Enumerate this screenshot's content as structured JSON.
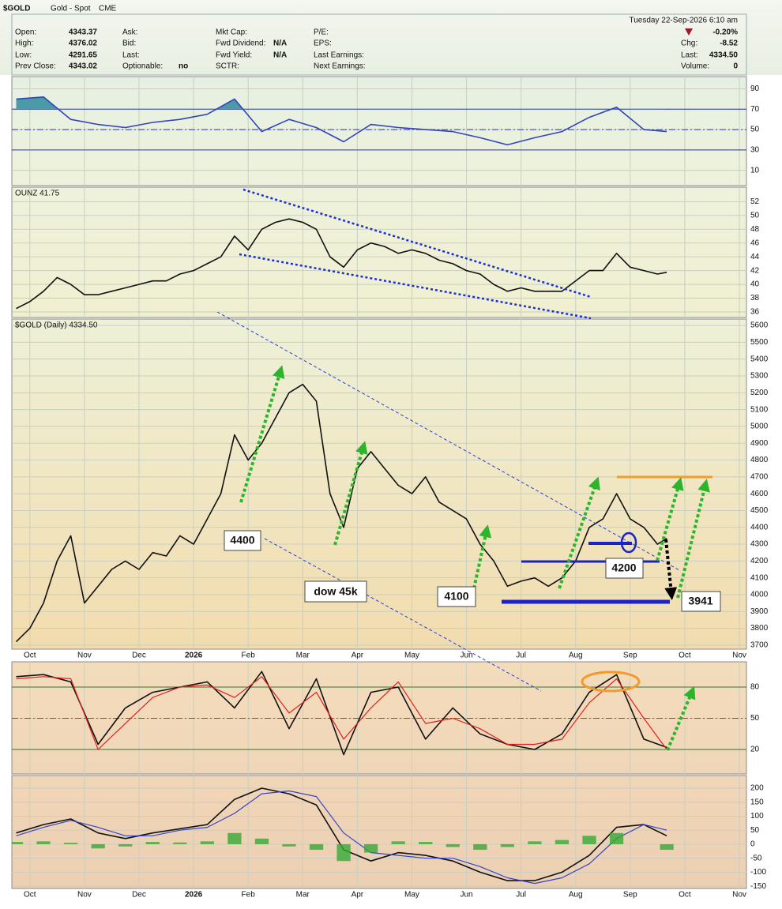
{
  "header": {
    "symbol": "$GOLD",
    "name": "Gold - Spot",
    "exchange": "CME",
    "date": "Tuesday  22-Sep-2026  6:10 am",
    "change_pct": "-0.20%",
    "columns": [
      [
        {
          "label": "Open:",
          "value": "4343.37"
        },
        {
          "label": "High:",
          "value": "4376.02"
        },
        {
          "label": "Low:",
          "value": "4291.65"
        },
        {
          "label": "Prev Close:",
          "value": "4343.02"
        }
      ],
      [
        {
          "label": "Ask:"
        },
        {
          "label": "Bid:"
        },
        {
          "label": "Last:"
        },
        {
          "label": "Optionable:",
          "value": "no"
        }
      ],
      [
        {
          "label": "Mkt Cap:"
        },
        {
          "label": "Fwd Dividend:",
          "value": "N/A"
        },
        {
          "label": "Fwd Yield:",
          "value": "N/A"
        },
        {
          "label": "SCTR:"
        }
      ],
      [
        {
          "label": "P/E:"
        },
        {
          "label": "EPS:"
        },
        {
          "label": "Last Earnings:"
        },
        {
          "label": "Next Earnings:"
        }
      ]
    ],
    "right": [
      {
        "label": "Chg:",
        "value": "-8.52"
      },
      {
        "label": "Last:",
        "value": "4334.50"
      },
      {
        "label": "Volume:",
        "value": "0"
      }
    ]
  },
  "chart_data": [
    {
      "type": "line",
      "x": [
        -0.25,
        0.25,
        0.75,
        1.25,
        1.75,
        2.25,
        2.75,
        3.25,
        3.75,
        4.25,
        4.75,
        5.25,
        5.75,
        6.25,
        6.75,
        7.25,
        7.75,
        8.25,
        8.75,
        9.25,
        9.75,
        10.25,
        10.75,
        11.25,
        11.67
      ],
      "series": [
        {
          "color": "#3344bb",
          "values": [
            80,
            82,
            60,
            55,
            52,
            57,
            60,
            65,
            80,
            48,
            60,
            52,
            38,
            55,
            52,
            50,
            48,
            42,
            35,
            42,
            48,
            62,
            72,
            50,
            48
          ]
        }
      ],
      "xlim": [
        -0.33,
        13.13
      ],
      "ylim": [
        -5,
        102
      ],
      "yticks": [
        10,
        30,
        50,
        70,
        90
      ],
      "hlines": [
        30,
        50,
        70
      ],
      "fill_color": "#4a9aa8"
    },
    {
      "type": "line",
      "title": "OUNZ 41.75",
      "x": [
        -0.25,
        0,
        0.25,
        0.5,
        0.75,
        1,
        1.25,
        1.5,
        1.75,
        2,
        2.25,
        2.5,
        2.75,
        3,
        3.25,
        3.5,
        3.75,
        4,
        4.25,
        4.5,
        4.75,
        5,
        5.25,
        5.5,
        5.75,
        6,
        6.25,
        6.5,
        6.75,
        7,
        7.25,
        7.5,
        7.75,
        8,
        8.25,
        8.5,
        8.75,
        9,
        9.25,
        9.5,
        9.75,
        10,
        10.25,
        10.5,
        10.75,
        11,
        11.25,
        11.5,
        11.67
      ],
      "series": [
        {
          "color": "#111111",
          "values": [
            36.5,
            37.5,
            39,
            41,
            40,
            38.5,
            38.5,
            39,
            39.5,
            40,
            40.5,
            40.5,
            41.5,
            42,
            43,
            44,
            47,
            45,
            48,
            49,
            49.5,
            49,
            48,
            44,
            42.5,
            45,
            46,
            45.5,
            44.5,
            45,
            44.5,
            43.5,
            43,
            42,
            41.5,
            40,
            39,
            39.5,
            39,
            39,
            39,
            40.5,
            42,
            42,
            44.5,
            42.5,
            42,
            41.5,
            41.75
          ]
        }
      ],
      "xlim": [
        -0.33,
        13.13
      ],
      "ylim": [
        35.2,
        54.1
      ],
      "yticks": [
        36,
        38,
        40,
        42,
        44,
        46,
        48,
        50,
        52
      ]
    },
    {
      "type": "line",
      "title": "$GOLD (Daily) 4334.50",
      "x": [
        -0.25,
        0,
        0.25,
        0.5,
        0.75,
        1,
        1.25,
        1.5,
        1.75,
        2,
        2.25,
        2.5,
        2.75,
        3,
        3.25,
        3.5,
        3.75,
        4,
        4.25,
        4.5,
        4.75,
        5,
        5.25,
        5.5,
        5.75,
        6,
        6.25,
        6.5,
        6.75,
        7,
        7.25,
        7.5,
        7.75,
        8,
        8.25,
        8.5,
        8.75,
        9,
        9.25,
        9.5,
        9.75,
        10,
        10.25,
        10.5,
        10.75,
        11,
        11.25,
        11.5,
        11.67
      ],
      "series": [
        {
          "color": "#111111",
          "values": [
            3720,
            3800,
            3950,
            4200,
            4350,
            3950,
            4050,
            4150,
            4200,
            4150,
            4250,
            4230,
            4350,
            4300,
            4450,
            4600,
            4950,
            4800,
            4900,
            5050,
            5200,
            5250,
            5150,
            4600,
            4400,
            4750,
            4850,
            4750,
            4650,
            4600,
            4700,
            4550,
            4500,
            4450,
            4300,
            4200,
            4050,
            4080,
            4100,
            4050,
            4100,
            4200,
            4400,
            4450,
            4600,
            4450,
            4400,
            4300,
            4334.5
          ]
        }
      ],
      "xlim": [
        -0.33,
        13.13
      ],
      "ylim": [
        3676,
        5638
      ],
      "yticks": [
        3700,
        3800,
        3900,
        4000,
        4100,
        4200,
        4300,
        4400,
        4500,
        4600,
        4700,
        4800,
        4900,
        5000,
        5100,
        5200,
        5300,
        5400,
        5500,
        5600
      ],
      "xticks": [
        {
          "value": 0,
          "label": "Oct"
        },
        {
          "value": 1,
          "label": "Nov"
        },
        {
          "value": 2,
          "label": "Dec"
        },
        {
          "value": 3,
          "label": "2026"
        },
        {
          "value": 4,
          "label": "Feb"
        },
        {
          "value": 5,
          "label": "Mar"
        },
        {
          "value": 6,
          "label": "Apr"
        },
        {
          "value": 7,
          "label": "May"
        },
        {
          "value": 8,
          "label": "Jun"
        },
        {
          "value": 9,
          "label": "Jul"
        },
        {
          "value": 10,
          "label": "Aug"
        },
        {
          "value": 11,
          "label": "Sep"
        },
        {
          "value": 12,
          "label": "Oct"
        },
        {
          "value": 13,
          "label": "Nov"
        }
      ],
      "annotations": [
        "4400",
        "dow 45k",
        "4100",
        "4200",
        "3941"
      ]
    },
    {
      "type": "line",
      "x": [
        -0.25,
        0.25,
        0.75,
        1.25,
        1.75,
        2.25,
        2.75,
        3.25,
        3.75,
        4.25,
        4.75,
        5.25,
        5.75,
        6.25,
        6.75,
        7.25,
        7.75,
        8.25,
        8.75,
        9.25,
        9.75,
        10.25,
        10.75,
        11.25,
        11.67
      ],
      "series": [
        {
          "color": "#111111",
          "values": [
            90,
            92,
            85,
            25,
            60,
            75,
            80,
            85,
            60,
            95,
            40,
            88,
            15,
            75,
            80,
            30,
            60,
            35,
            25,
            20,
            35,
            75,
            92,
            30,
            22
          ]
        },
        {
          "color": "#e02020",
          "values": [
            88,
            90,
            88,
            20,
            45,
            70,
            80,
            82,
            70,
            90,
            55,
            75,
            30,
            60,
            85,
            45,
            50,
            40,
            25,
            25,
            30,
            65,
            88,
            50,
            20
          ]
        }
      ],
      "xlim": [
        -0.33,
        13.13
      ],
      "ylim": [
        -3.5,
        104.3
      ],
      "yticks": [
        20,
        50,
        80
      ],
      "hlines": [
        20,
        50,
        80
      ]
    },
    {
      "type": "line",
      "x": [
        -0.25,
        0.25,
        0.75,
        1.25,
        1.75,
        2.25,
        2.75,
        3.25,
        3.75,
        4.25,
        4.75,
        5.25,
        5.75,
        6.25,
        6.75,
        7.25,
        7.75,
        8.25,
        8.75,
        9.25,
        9.75,
        10.25,
        10.75,
        11.25,
        11.67
      ],
      "series": [
        {
          "color": "#111111",
          "values": [
            40,
            70,
            90,
            40,
            20,
            40,
            55,
            70,
            160,
            200,
            180,
            140,
            -20,
            -60,
            -30,
            -40,
            -60,
            -100,
            -130,
            -130,
            -100,
            -40,
            60,
            70,
            30
          ]
        },
        {
          "color": "#3344cc",
          "values": [
            30,
            60,
            85,
            60,
            30,
            30,
            50,
            60,
            110,
            180,
            190,
            170,
            40,
            -30,
            -40,
            -50,
            -50,
            -80,
            -120,
            -140,
            -120,
            -70,
            20,
            70,
            50
          ]
        },
        {
          "color": "#33aa33",
          "type": "bar",
          "values": [
            8,
            10,
            5,
            -15,
            -8,
            8,
            6,
            10,
            40,
            20,
            -8,
            -20,
            -60,
            -30,
            10,
            8,
            -10,
            -20,
            -10,
            10,
            15,
            30,
            40,
            0,
            -20
          ]
        }
      ],
      "xlim": [
        -0.33,
        13.13
      ],
      "ylim": [
        -158,
        245
      ],
      "yticks": [
        -150,
        -100,
        -50,
        0,
        50,
        100,
        150,
        200
      ],
      "xticks": [
        {
          "value": 0,
          "label": "Oct"
        },
        {
          "value": 1,
          "label": "Nov"
        },
        {
          "value": 2,
          "label": "Dec"
        },
        {
          "value": 3,
          "label": "2026"
        },
        {
          "value": 4,
          "label": "Feb"
        },
        {
          "value": 5,
          "label": "Mar"
        },
        {
          "value": 6,
          "label": "Apr"
        },
        {
          "value": 7,
          "label": "May"
        },
        {
          "value": 8,
          "label": "Jun"
        },
        {
          "value": 9,
          "label": "Jul"
        },
        {
          "value": 10,
          "label": "Aug"
        },
        {
          "value": 11,
          "label": "Sep"
        },
        {
          "value": 12,
          "label": "Oct"
        },
        {
          "value": 13,
          "label": "Nov"
        }
      ]
    }
  ]
}
